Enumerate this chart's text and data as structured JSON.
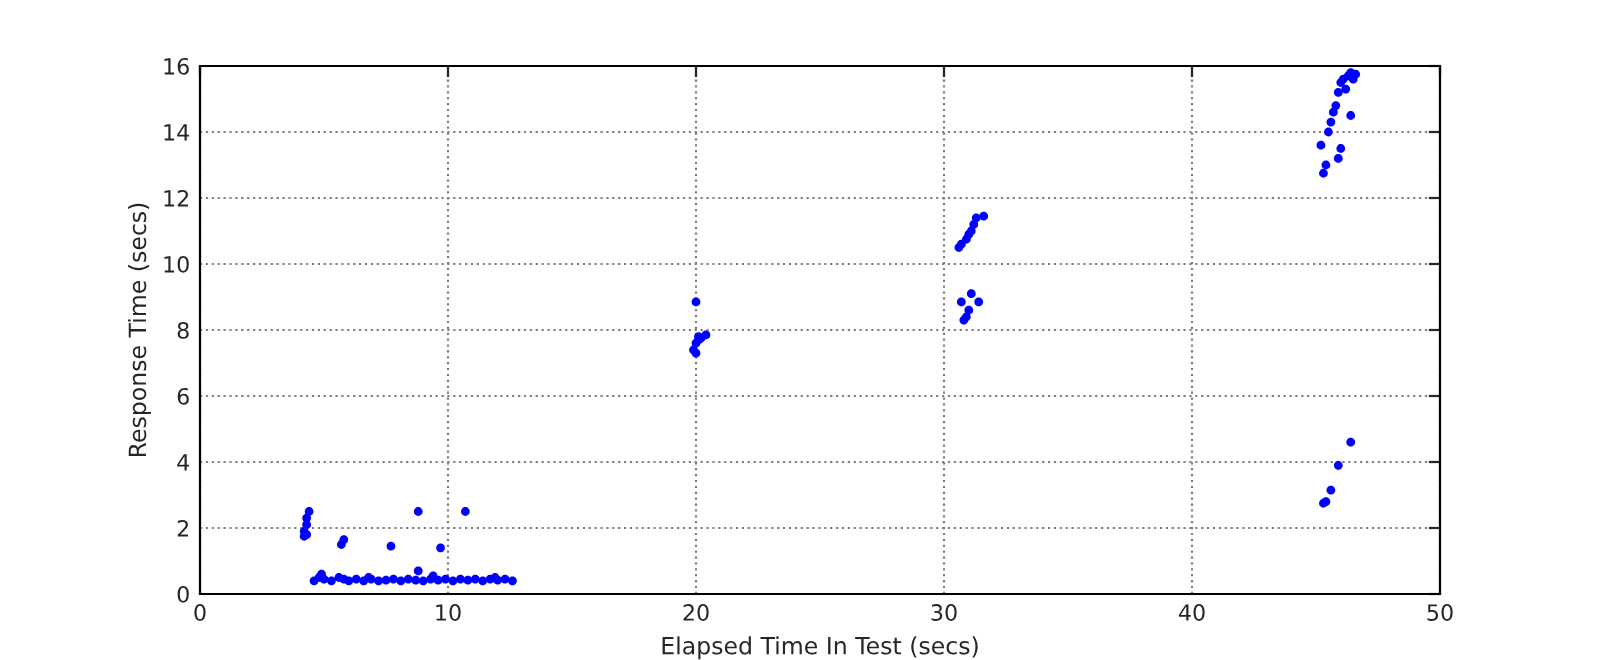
{
  "chart_data": {
    "type": "scatter",
    "xlabel": "Elapsed Time In Test (secs)",
    "ylabel": "Response Time (secs)",
    "xlim": [
      0,
      50
    ],
    "ylim": [
      0,
      16
    ],
    "xticks": [
      0,
      10,
      20,
      30,
      40,
      50
    ],
    "yticks": [
      0,
      2,
      4,
      6,
      8,
      10,
      12,
      14,
      16
    ],
    "grid": true,
    "marker": "circle",
    "series": [
      {
        "color": "#0000ff",
        "x": [
          4.2,
          4.2,
          4.3,
          4.3,
          4.4,
          4.3,
          4.6,
          4.8,
          5.0,
          5.3,
          5.6,
          5.8,
          6.0,
          6.3,
          6.6,
          6.9,
          7.2,
          7.5,
          7.8,
          8.1,
          8.4,
          8.7,
          9.0,
          9.3,
          9.6,
          9.9,
          10.2,
          10.5,
          10.8,
          11.1,
          11.4,
          11.7,
          12.0,
          12.3,
          12.6,
          5.7,
          5.8,
          7.7,
          8.8,
          9.7,
          10.7,
          8.8,
          4.9,
          6.8,
          9.4,
          11.9,
          19.9,
          20.0,
          20.0,
          20.1,
          20.1,
          20.2,
          20.4,
          20.0,
          30.6,
          30.7,
          30.9,
          31.0,
          31.1,
          31.2,
          31.3,
          31.6,
          30.7,
          30.8,
          30.9,
          31.0,
          31.1,
          31.4,
          45.2,
          45.3,
          45.4,
          45.5,
          45.6,
          45.7,
          45.8,
          45.9,
          46.0,
          46.1,
          46.2,
          46.3,
          46.4,
          46.5,
          46.6,
          45.9,
          46.0,
          46.4,
          45.3,
          45.4,
          45.6,
          45.9,
          46.4
        ],
        "values": [
          1.75,
          1.9,
          2.1,
          2.3,
          2.5,
          1.8,
          0.4,
          0.5,
          0.45,
          0.4,
          0.5,
          0.45,
          0.4,
          0.45,
          0.4,
          0.45,
          0.4,
          0.42,
          0.45,
          0.4,
          0.45,
          0.42,
          0.4,
          0.45,
          0.42,
          0.45,
          0.4,
          0.45,
          0.42,
          0.45,
          0.4,
          0.45,
          0.42,
          0.45,
          0.4,
          1.5,
          1.65,
          1.45,
          2.5,
          1.4,
          2.5,
          0.7,
          0.6,
          0.5,
          0.55,
          0.5,
          7.4,
          7.6,
          7.3,
          7.7,
          7.8,
          7.75,
          7.85,
          8.85,
          10.5,
          10.6,
          10.75,
          10.9,
          11.0,
          11.2,
          11.4,
          11.45,
          8.85,
          8.3,
          8.4,
          8.6,
          9.1,
          8.85,
          13.6,
          12.75,
          13.0,
          14.0,
          14.3,
          14.6,
          14.8,
          15.2,
          15.5,
          15.6,
          15.3,
          15.7,
          15.8,
          15.6,
          15.75,
          13.2,
          13.5,
          14.5,
          2.75,
          2.8,
          3.15,
          3.9,
          4.6
        ]
      }
    ]
  }
}
